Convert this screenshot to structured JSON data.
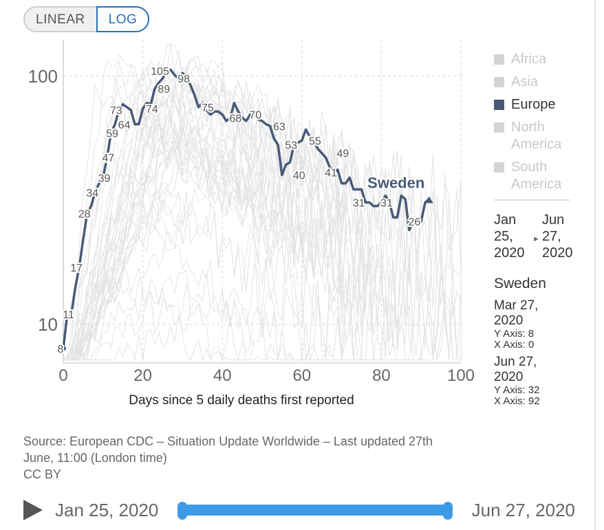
{
  "toggle": {
    "linear_label": "LINEAR",
    "log_label": "LOG",
    "active": "LOG"
  },
  "legend": [
    {
      "label": "Africa",
      "state": "dim"
    },
    {
      "label": "Asia",
      "state": "dim"
    },
    {
      "label": "Europe",
      "state": "active"
    },
    {
      "label": "North America",
      "state": "dim"
    },
    {
      "label": "South America",
      "state": "dim"
    }
  ],
  "range": {
    "start": [
      "Jan",
      "25,",
      "2020"
    ],
    "end": [
      "Jun",
      "27,",
      "2020"
    ]
  },
  "tooltip": {
    "country": "Sweden",
    "first": {
      "date_line1": "Mar 27,",
      "date_line2": "2020",
      "y": "Y Axis: 8",
      "x": "X Axis: 0"
    },
    "last": {
      "date_line1": "Jun 27,",
      "date_line2": "2020",
      "y": "Y Axis: 32",
      "x": "X Axis: 92"
    }
  },
  "source": {
    "line1": "Source: European CDC – Situation Update Worldwide – Last updated 27th",
    "line2": "June, 11:00 (London time)",
    "line3": "CC BY"
  },
  "timeline": {
    "start_label": "Jan 25, 2020",
    "end_label": "Jun 27, 2020"
  },
  "colors": {
    "highlight": "#475a78",
    "background_lines": "#d5d5d5",
    "accent": "#2a6ebb",
    "slider": "#3d9ae8"
  },
  "chart_data": {
    "type": "line",
    "scale": "log",
    "xlabel": "Days since 5 daily deaths first reported",
    "ylabel": "",
    "xlim": [
      0,
      100
    ],
    "ylim": [
      7,
      140
    ],
    "x_ticks": [
      0,
      20,
      40,
      60,
      80,
      100
    ],
    "y_ticks": [
      10,
      100
    ],
    "series": [
      {
        "name": "Sweden",
        "x": [
          0,
          1,
          2,
          3,
          4,
          5,
          6,
          7,
          8,
          9,
          10,
          11,
          12,
          13,
          14,
          15,
          16,
          17,
          18,
          19,
          20,
          21,
          22,
          23,
          24,
          25,
          26,
          27,
          28,
          29,
          30,
          31,
          32,
          33,
          34,
          35,
          36,
          37,
          38,
          39,
          40,
          41,
          42,
          43,
          44,
          45,
          46,
          47,
          48,
          49,
          50,
          51,
          52,
          53,
          54,
          55,
          56,
          57,
          58,
          59,
          60,
          61,
          62,
          63,
          64,
          65,
          66,
          67,
          68,
          69,
          70,
          71,
          72,
          73,
          74,
          75,
          76,
          77,
          78,
          79,
          80,
          81,
          82,
          83,
          84,
          85,
          86,
          87,
          88,
          89,
          90,
          91,
          92
        ],
        "y": [
          8,
          11,
          11,
          14,
          17,
          22,
          28,
          30,
          34,
          37,
          39,
          47,
          59,
          64,
          73,
          77,
          75,
          73,
          64,
          64,
          74,
          78,
          77,
          89,
          94,
          98,
          105,
          106,
          101,
          98,
          103,
          98,
          92,
          84,
          75,
          78,
          73,
          70,
          72,
          72,
          70,
          66,
          68,
          78,
          72,
          68,
          66,
          70,
          70,
          67,
          66,
          64,
          63,
          56,
          53,
          40,
          44,
          45,
          53,
          54,
          55,
          61,
          57,
          55,
          51,
          49,
          47,
          43,
          41,
          42,
          37,
          37,
          39,
          35,
          35,
          35,
          31,
          31,
          30,
          30,
          31,
          33,
          31,
          27,
          27,
          33,
          32,
          24,
          26,
          25,
          26,
          31,
          32
        ]
      }
    ],
    "point_labels": [
      {
        "x": 0,
        "y": 8,
        "text": "8"
      },
      {
        "x": 2,
        "y": 11,
        "text": "11"
      },
      {
        "x": 4,
        "y": 17,
        "text": "17"
      },
      {
        "x": 6,
        "y": 28,
        "text": "28"
      },
      {
        "x": 8,
        "y": 34,
        "text": "34"
      },
      {
        "x": 11,
        "y": 39,
        "text": "39"
      },
      {
        "x": 12,
        "y": 47,
        "text": "47"
      },
      {
        "x": 13,
        "y": 59,
        "text": "59"
      },
      {
        "x": 16,
        "y": 64,
        "text": "64"
      },
      {
        "x": 14,
        "y": 73,
        "text": "73"
      },
      {
        "x": 23,
        "y": 74,
        "text": "74"
      },
      {
        "x": 26,
        "y": 89,
        "text": "89"
      },
      {
        "x": 25,
        "y": 105,
        "text": "105"
      },
      {
        "x": 31,
        "y": 98,
        "text": "98"
      },
      {
        "x": 37,
        "y": 75,
        "text": "75"
      },
      {
        "x": 44,
        "y": 68,
        "text": "68"
      },
      {
        "x": 49,
        "y": 70,
        "text": "70"
      },
      {
        "x": 55,
        "y": 63,
        "text": "63"
      },
      {
        "x": 58,
        "y": 53,
        "text": "53"
      },
      {
        "x": 60,
        "y": 40,
        "text": "40"
      },
      {
        "x": 64,
        "y": 55,
        "text": "55"
      },
      {
        "x": 68,
        "y": 41,
        "text": "41"
      },
      {
        "x": 71,
        "y": 49,
        "text": "49"
      },
      {
        "x": 75,
        "y": 31,
        "text": "31"
      },
      {
        "x": 82,
        "y": 31,
        "text": "31"
      },
      {
        "x": 89,
        "y": 26,
        "text": "26"
      }
    ],
    "series_label": {
      "text": "Sweden"
    }
  }
}
